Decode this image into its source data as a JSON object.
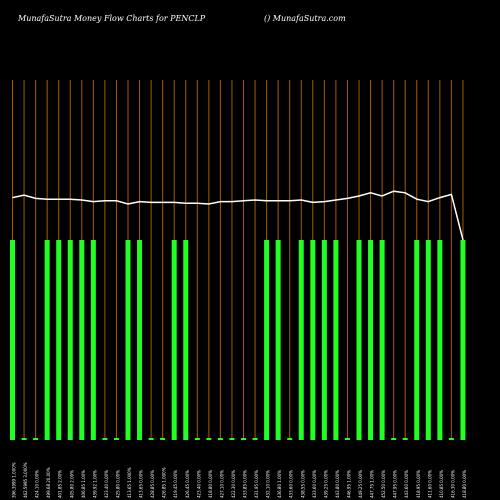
{
  "header": {
    "left_title": "MunafaSutra  Money Flow  Charts for PENCLP",
    "right_title": "() MunafaSutra.com"
  },
  "colors": {
    "background": "#000000",
    "bar": "#22ff22",
    "gridline": "#a85a00",
    "line": "#ffffff",
    "text": "#ffffff"
  },
  "chart_data": {
    "type": "bar",
    "grid": true,
    "line_series": {
      "values": [
        53,
        56,
        52,
        51,
        51,
        51,
        50,
        48,
        49,
        49,
        45,
        48,
        47,
        47,
        47,
        46,
        46,
        45,
        48,
        48,
        49,
        50,
        49,
        49,
        49,
        50,
        47,
        48,
        50,
        52,
        55,
        59,
        55,
        61,
        59,
        51,
        48,
        53,
        57,
        0
      ],
      "range": [
        0,
        100
      ]
    },
    "categories": [
      "396.3999 1.000%",
      "462.5995 3.000%",
      "424.10 0.00%",
      "499.68 20.00%",
      "401.85 2.00%",
      "405.80 2.00%",
      "406.85 1.00%",
      "439.92 1.00%",
      "423.40 0.00%",
      "425.80 0.00%",
      "413.65 1.000%",
      "413.65 0.00%",
      "428.85 0.00%",
      "426.85 1.000%",
      "419.45 0.00%",
      "426.45 0.00%",
      "423.40 0.00%",
      "418.80 0.00%",
      "427.10 0.00%",
      "422.30 0.00%",
      "433.85 0.00%",
      "431.95 0.00%",
      "432.10 0.00%",
      "436.80 1.00%",
      "433.60 0.00%",
      "438.55 0.00%",
      "433.60 0.00%",
      "439.25 0.00%",
      "443.80 0.00%",
      "446.95 1.00%",
      "449.25 0.00%",
      "447.75 1.00%",
      "452.50 0.00%",
      "447.95 0.00%",
      "443.60 0.00%",
      "418.95 0.00%",
      "411.60 0.00%",
      "410.85 0.00%",
      "416.30 0.00%",
      "418.80 0.00%"
    ],
    "values": [
      100,
      1,
      1,
      100,
      100,
      100,
      100,
      100,
      1,
      1,
      100,
      100,
      1,
      1,
      100,
      100,
      1,
      1,
      1,
      1,
      1,
      1,
      100,
      100,
      1,
      100,
      100,
      100,
      100,
      1,
      100,
      100,
      100,
      1,
      1,
      100,
      100,
      100,
      1,
      100
    ],
    "ylim": [
      0,
      100
    ]
  }
}
